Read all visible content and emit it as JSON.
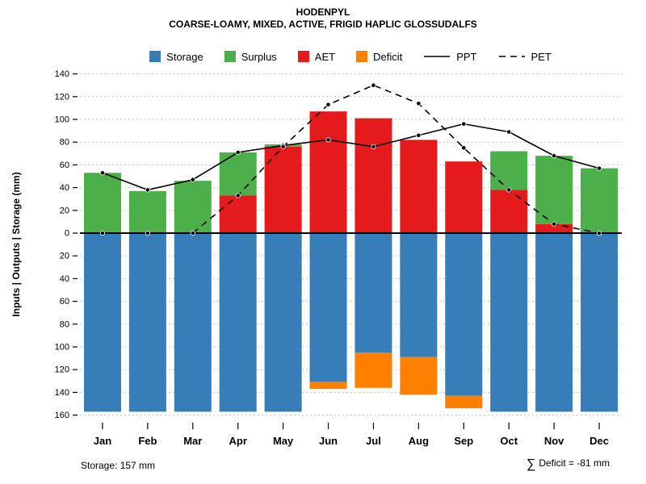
{
  "header": {
    "title": "HODENPYL",
    "subtitle": "COARSE-LOAMY, MIXED, ACTIVE, FRIGID HAPLIC GLOSSUDALFS"
  },
  "footer": {
    "storage_note": "Storage: 157 mm",
    "deficit_sigma": "∑",
    "deficit_text": "Deficit = -81 mm"
  },
  "chart_data": {
    "type": "bar",
    "title": "HODENPYL",
    "subtitle": "COARSE-LOAMY, MIXED, ACTIVE, FRIGID HAPLIC GLOSSUDALFS",
    "categories": [
      "Jan",
      "Feb",
      "Mar",
      "Apr",
      "May",
      "Jun",
      "Jul",
      "Aug",
      "Sep",
      "Oct",
      "Nov",
      "Dec"
    ],
    "ylabel": "Inputs | Outputs | Storage   (mm)",
    "axis": {
      "up_max": 140,
      "down_max": 160,
      "tick_step": 20,
      "grid": true
    },
    "legend_position": "top",
    "colors": {
      "storage": "#377EB8",
      "surplus": "#4DAF4A",
      "aet": "#E41A1C",
      "deficit": "#FF7F00",
      "ppt": "#000000",
      "pet": "#000000"
    },
    "series": [
      {
        "key": "storage",
        "name": "Storage",
        "kind": "bar-down",
        "values": [
          157,
          157,
          157,
          157,
          157,
          131,
          105,
          109,
          143,
          157,
          157,
          157
        ]
      },
      {
        "key": "deficit",
        "name": "Deficit",
        "kind": "bar-down-stacked",
        "values": [
          0,
          0,
          0,
          0,
          0,
          6,
          31,
          33,
          11,
          0,
          0,
          0
        ]
      },
      {
        "key": "aet",
        "name": "AET",
        "kind": "bar-up",
        "values": [
          0,
          0,
          0,
          33,
          76,
          107,
          101,
          82,
          63,
          38,
          8,
          0
        ]
      },
      {
        "key": "surplus",
        "name": "Surplus",
        "kind": "bar-up-stacked",
        "values": [
          53,
          37,
          46,
          38,
          2,
          0,
          0,
          0,
          0,
          34,
          60,
          57
        ]
      },
      {
        "key": "ppt",
        "name": "PPT",
        "kind": "line-solid",
        "values": [
          53,
          38,
          47,
          71,
          77,
          82,
          76,
          86,
          96,
          89,
          68,
          57
        ]
      },
      {
        "key": "pet",
        "name": "PET",
        "kind": "line-dashed",
        "values": [
          0,
          0,
          0,
          33,
          76,
          113,
          130,
          114,
          75,
          38,
          8,
          0
        ]
      }
    ],
    "legend": [
      {
        "key": "storage",
        "label": "Storage",
        "type": "swatch"
      },
      {
        "key": "surplus",
        "label": "Surplus",
        "type": "swatch"
      },
      {
        "key": "aet",
        "label": "AET",
        "type": "swatch"
      },
      {
        "key": "deficit",
        "label": "Deficit",
        "type": "swatch"
      },
      {
        "key": "ppt",
        "label": "PPT",
        "type": "line-solid"
      },
      {
        "key": "pet",
        "label": "PET",
        "type": "line-dashed"
      }
    ]
  }
}
